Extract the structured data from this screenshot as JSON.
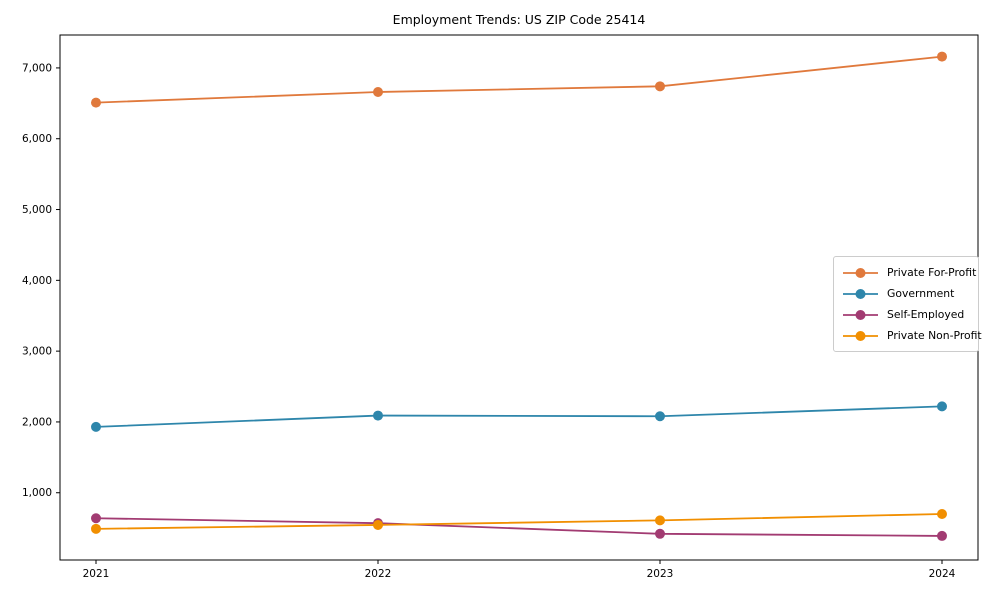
{
  "title": "Employment Trends: US ZIP Code 25414",
  "chart_data": {
    "type": "line",
    "title": "Employment Trends: US ZIP Code 25414",
    "x": [
      2021,
      2022,
      2023,
      2024
    ],
    "xtick_labels": [
      "2021",
      "2022",
      "2023",
      "2024"
    ],
    "yticks": [
      1000,
      2000,
      3000,
      4000,
      5000,
      6000,
      7000
    ],
    "ytick_labels": [
      "1,000",
      "2,000",
      "3,000",
      "4,000",
      "5,000",
      "6,000",
      "7,000"
    ],
    "ylim": [
      50,
      7465
    ],
    "xlabel": "",
    "ylabel": "",
    "grid": false,
    "legend_position": "center right",
    "series": [
      {
        "name": "Private For-Profit",
        "color": "#E0793C",
        "values": [
          6510,
          6660,
          6740,
          7160
        ]
      },
      {
        "name": "Government",
        "color": "#2E86AB",
        "values": [
          1930,
          2090,
          2080,
          2220
        ]
      },
      {
        "name": "Self-Employed",
        "color": "#A23B72",
        "values": [
          640,
          570,
          420,
          390
        ]
      },
      {
        "name": "Private Non-Profit",
        "color": "#F18F01",
        "values": [
          490,
          545,
          610,
          700
        ]
      }
    ]
  },
  "frame_color": "#000000"
}
